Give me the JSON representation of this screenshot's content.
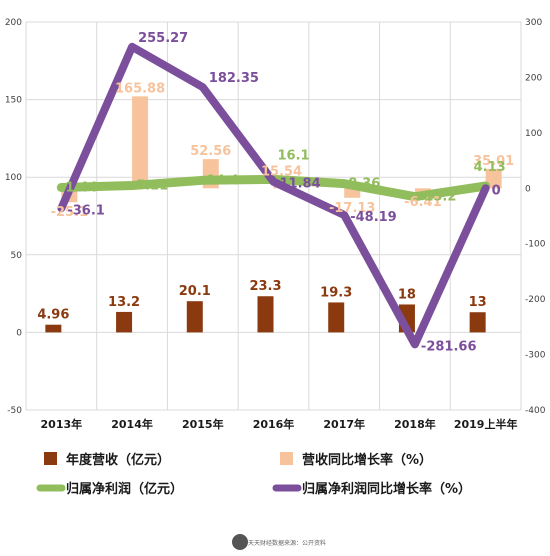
{
  "chart_data": {
    "type": "bar+line",
    "categories": [
      "2013年",
      "2014年",
      "2015年",
      "2016年",
      "2017年",
      "2018年",
      "2019上半年"
    ],
    "left_axis": {
      "min": -50,
      "max": 200,
      "ticks": [
        "-50",
        "0",
        "50",
        "100",
        "150",
        "200"
      ]
    },
    "right_axis": {
      "min": -400,
      "max": 300,
      "ticks": [
        "-400",
        "-300",
        "-200",
        "-100",
        "0",
        "100",
        "200",
        "300"
      ]
    },
    "grid": true,
    "legend_position": "bottom",
    "series": [
      {
        "name": "年度营收（亿元）",
        "type": "bar",
        "axis": "left",
        "color": "#8a3a0e",
        "values": [
          4.96,
          13.2,
          20.1,
          23.3,
          19.3,
          18,
          13
        ],
        "labels": [
          "4.96",
          "13.2",
          "20.1",
          "23.3",
          "19.3",
          "18",
          "13"
        ]
      },
      {
        "name": "营收同比增长率（%）",
        "type": "bar",
        "axis": "right",
        "color": "#f7c39c",
        "values": [
          -25.1,
          165.88,
          52.56,
          15.54,
          -17.13,
          -6.41,
          35.01
        ],
        "labels": [
          "-25.1",
          "165.88",
          "52.56",
          "15.54",
          "-17.13",
          "-6.41",
          "35.01"
        ]
      },
      {
        "name": "归属净利润（亿元）",
        "type": "line",
        "axis": "right",
        "color": "#92bd5c",
        "values": [
          1.44,
          5.11,
          14.4,
          16.1,
          8.36,
          -15.2,
          4.13
        ],
        "labels": [
          "1.44",
          "5.11",
          "14.4",
          "16.1",
          "8.36",
          "-15.2",
          "4.13"
        ]
      },
      {
        "name": "归属净利润同比增长率（%）",
        "type": "line",
        "axis": "right",
        "color": "#7b4f9b",
        "values": [
          -36.1,
          255.27,
          182.35,
          11.84,
          -48.19,
          -281.66,
          0
        ],
        "labels": [
          "-36.1",
          "255.27",
          "182.35",
          "11.84",
          "-48.19",
          "-281.66",
          "0"
        ]
      }
    ]
  },
  "footer": {
    "brand": "天天财经",
    "source": "数据来源：公开资料"
  },
  "colors": {
    "grid": "#d9d9d9",
    "text": "#404040"
  }
}
